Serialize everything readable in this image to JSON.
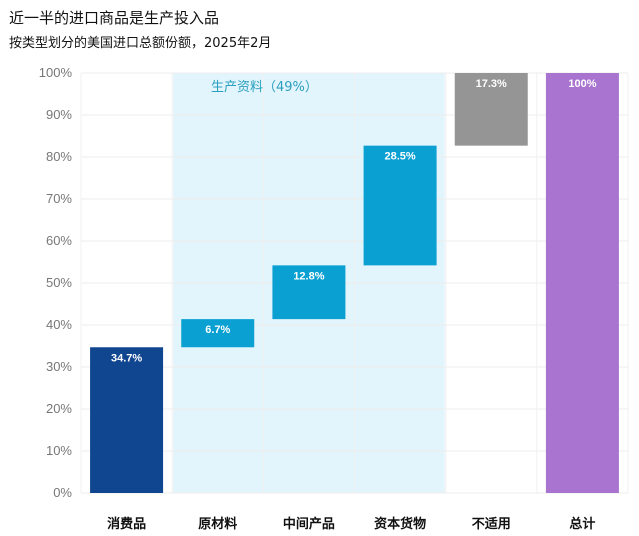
{
  "title": "近一半的进口商品是生产投入品",
  "subtitle": "按类型划分的美国进口总额份额，2025年2月",
  "band_label": "生产资料（49%）",
  "chart_data": {
    "type": "bar",
    "subtype": "waterfall",
    "categories": [
      "消费品",
      "原材料",
      "中间产品",
      "资本货物",
      "不适用",
      "总计"
    ],
    "values": [
      34.7,
      6.7,
      12.8,
      28.5,
      17.3,
      100
    ],
    "bases": [
      0,
      34.7,
      41.4,
      54.2,
      82.7,
      0
    ],
    "value_labels": [
      "34.7%",
      "6.7%",
      "12.8%",
      "28.5%",
      "17.3%",
      "100%"
    ],
    "colors": [
      "#10458f",
      "#0aa0d2",
      "#0aa0d2",
      "#0aa0d2",
      "#959595",
      "#a974d0"
    ],
    "band_color": "#e3f5fc",
    "band_categories": [
      "原材料",
      "中间产品",
      "资本货物"
    ],
    "ylim": [
      0,
      100
    ],
    "y_ticks": [
      "0%",
      "10%",
      "20%",
      "30%",
      "40%",
      "50%",
      "60%",
      "70%",
      "80%",
      "90%",
      "100%"
    ],
    "grid": true
  }
}
